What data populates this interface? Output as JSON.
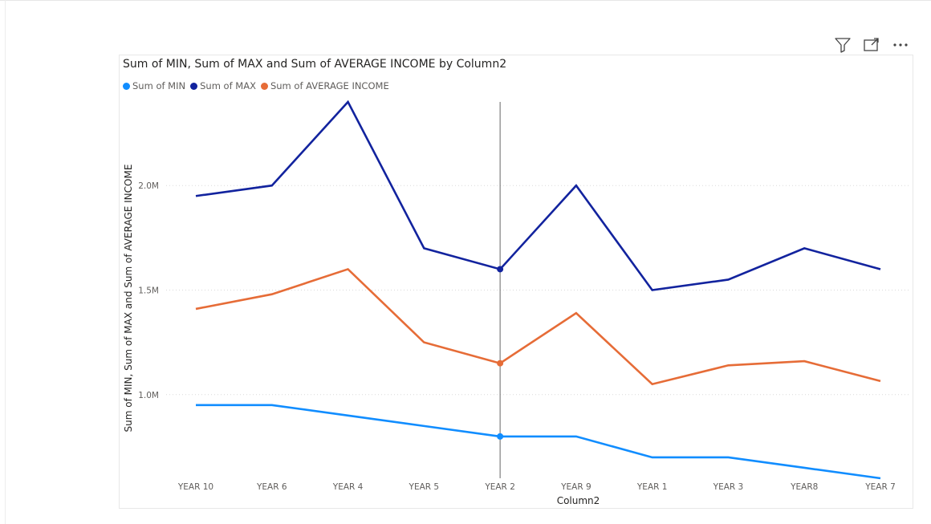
{
  "toolbar": {
    "filter_icon": "filter-icon",
    "focus_icon": "focus-mode-icon",
    "more_icon": "more-options-icon"
  },
  "chart_data": {
    "type": "line",
    "title": "Sum of MIN, Sum of MAX and Sum of AVERAGE INCOME by Column2",
    "xlabel": "Column2",
    "ylabel": "Sum of MIN, Sum of MAX and Sum of AVERAGE INCOME",
    "categories": [
      "YEAR 10",
      "YEAR 6",
      "YEAR 4",
      "YEAR 5",
      "YEAR 2",
      "YEAR 9",
      "YEAR 1",
      "YEAR 3",
      "YEAR8",
      "YEAR 7"
    ],
    "y_ticks": [
      {
        "value": 1000000,
        "label": "1.0M"
      },
      {
        "value": 1500000,
        "label": "1.5M"
      },
      {
        "value": 2000000,
        "label": "2.0M"
      }
    ],
    "ylim": [
      600000,
      2400000
    ],
    "grid": true,
    "legend_position": "top-left",
    "highlighted_category": "YEAR 2",
    "series": [
      {
        "name": "Sum of MIN",
        "color": "#118dff",
        "values": [
          950000,
          950000,
          900000,
          850000,
          800000,
          800000,
          700000,
          700000,
          650000,
          600000
        ]
      },
      {
        "name": "Sum of MAX",
        "color": "#12239e",
        "values": [
          1950000,
          2000000,
          2400000,
          1700000,
          1600000,
          2000000,
          1500000,
          1550000,
          1700000,
          1600000
        ]
      },
      {
        "name": "Sum of AVERAGE INCOME",
        "color": "#e66c37",
        "values": [
          1410000,
          1480000,
          1600000,
          1250000,
          1150000,
          1390000,
          1050000,
          1140000,
          1160000,
          1065000
        ]
      }
    ]
  }
}
